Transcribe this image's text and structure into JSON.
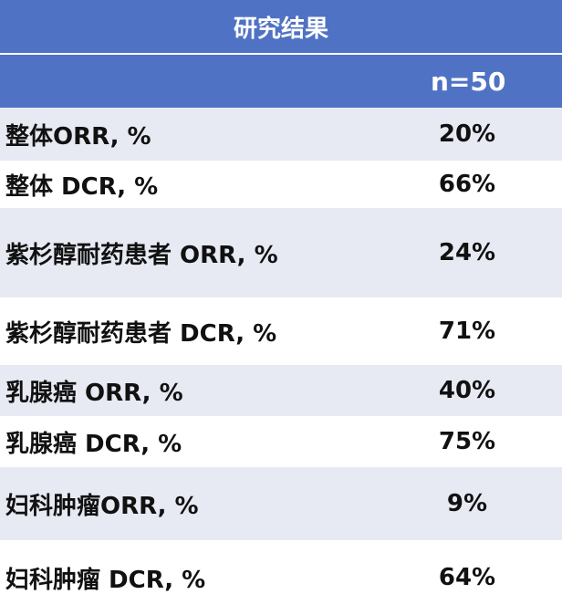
{
  "table": {
    "title": "研究结果",
    "column_header": "n=50",
    "rows": [
      {
        "label": "整体ORR, %",
        "value": "20%"
      },
      {
        "label": "整体 DCR, %",
        "value": "66%"
      },
      {
        "label": "紫杉醇耐药患者 ORR, %",
        "value": "24%"
      },
      {
        "label": "紫杉醇耐药患者 DCR, %",
        "value": "71%"
      },
      {
        "label": "乳腺癌 ORR, %",
        "value": "40%"
      },
      {
        "label": "乳腺癌 DCR, %",
        "value": "75%"
      },
      {
        "label": "妇科肿瘤ORR, %",
        "value": "9%"
      },
      {
        "label": "妇科肿瘤 DCR, %",
        "value": "64%"
      }
    ]
  }
}
